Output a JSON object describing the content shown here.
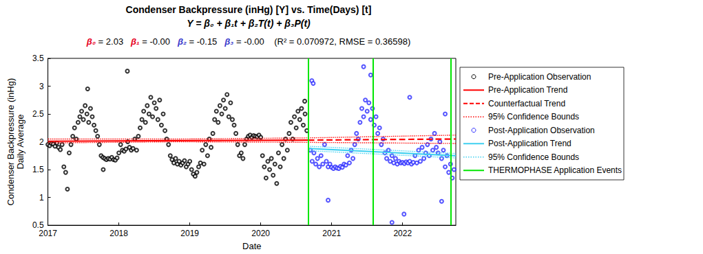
{
  "chart_data": {
    "type": "scatter",
    "title": "Condenser Backpressure (inHg) [Y] vs. Time(Days) [t]",
    "subtitle": "Y = β₀ + β₁t + β₂T(t) + β₃P(t)",
    "annotations": [
      {
        "text": "β₀",
        "color": "#e6001e"
      },
      {
        "text": " = 2.03   "
      },
      {
        "text": "β₁",
        "color": "#e6001e"
      },
      {
        "text": " = -0.00   "
      },
      {
        "text": "β₂",
        "color": "#3a3acc"
      },
      {
        "text": " = -0.15   "
      },
      {
        "text": "β₃",
        "color": "#3a3acc"
      },
      {
        "text": " = -0.00    (R² = 0.070972, RMSE = 0.36598)"
      }
    ],
    "x_label": "Date",
    "y_label": "Condenser Backpressure (inHg)\nDaily Average",
    "xlim": [
      2017,
      2022.75
    ],
    "xticks": [
      2017,
      2018,
      2019,
      2020,
      2021,
      2022
    ],
    "ylim": [
      0.5,
      3.5
    ],
    "yticks": [
      0.5,
      1,
      1.5,
      2,
      2.5,
      3,
      3.5
    ],
    "grid": false,
    "legend": "right",
    "series": [
      {
        "name": "Pre-Application Observation",
        "type": "scatter",
        "marker": "circle",
        "color": "#000000",
        "x": [
          2017,
          2017.025,
          2017.05,
          2017.075,
          2017.1,
          2017.125,
          2017.15,
          2017.175,
          2017.2,
          2017.225,
          2017.25,
          2017.275,
          2017.3,
          2017.325,
          2017.35,
          2017.375,
          2017.4,
          2017.425,
          2017.45,
          2017.475,
          2017.5,
          2017.525,
          2017.55,
          2017.575,
          2017.6,
          2017.625,
          2017.65,
          2017.675,
          2017.7,
          2017.725,
          2017.75,
          2017.775,
          2017.8,
          2017.825,
          2017.85,
          2017.875,
          2017.9,
          2017.925,
          2017.95,
          2017.975,
          2018,
          2018.025,
          2018.05,
          2018.075,
          2018.1,
          2018.125,
          2018.15,
          2018.175,
          2018.2,
          2018.225,
          2018.25,
          2018.275,
          2018.3,
          2018.325,
          2018.35,
          2018.375,
          2018.4,
          2018.425,
          2018.45,
          2018.475,
          2018.5,
          2018.525,
          2018.55,
          2018.575,
          2018.6,
          2018.625,
          2018.65,
          2018.675,
          2018.7,
          2018.725,
          2018.75,
          2018.775,
          2018.8,
          2018.825,
          2018.85,
          2018.875,
          2018.9,
          2018.925,
          2018.95,
          2018.975,
          2019,
          2019.025,
          2019.05,
          2019.075,
          2019.1,
          2019.125,
          2019.15,
          2019.175,
          2019.2,
          2019.225,
          2019.25,
          2019.275,
          2019.3,
          2019.325,
          2019.35,
          2019.375,
          2019.4,
          2019.425,
          2019.45,
          2019.475,
          2019.5,
          2019.525,
          2019.55,
          2019.575,
          2019.6,
          2019.625,
          2019.65,
          2019.675,
          2019.7,
          2019.725,
          2019.75,
          2019.775,
          2019.8,
          2019.825,
          2019.85,
          2019.875,
          2019.9,
          2019.925,
          2019.95,
          2019.975,
          2020,
          2020.025,
          2020.05,
          2020.075,
          2020.1,
          2020.125,
          2020.15,
          2020.175,
          2020.2,
          2020.225,
          2020.25,
          2020.275,
          2020.3,
          2020.325,
          2020.35,
          2020.375,
          2020.4,
          2020.425,
          2020.45,
          2020.475,
          2020.5,
          2020.525,
          2020.55,
          2020.575,
          2020.6,
          2020.625,
          2020.65,
          2017.56,
          2018.12,
          2017.78,
          2020.62
        ],
        "values": [
          1.95,
          1.93,
          1.97,
          1.96,
          1.92,
          1.98,
          1.9,
          1.86,
          1.95,
          1.55,
          1.45,
          1.15,
          1.8,
          1.95,
          2.1,
          2.25,
          2.05,
          2.35,
          2.45,
          2.55,
          2.4,
          2.65,
          2.5,
          2.35,
          2.6,
          2.45,
          2.3,
          2.2,
          2.1,
          1.95,
          1.75,
          1.72,
          1.7,
          1.68,
          1.7,
          1.69,
          1.72,
          1.68,
          1.67,
          1.71,
          1.8,
          1.95,
          1.85,
          1.83,
          1.87,
          2.0,
          1.9,
          1.85,
          1.88,
          2.05,
          1.85,
          2.1,
          2.25,
          2.4,
          2.55,
          2.35,
          2.65,
          2.5,
          2.8,
          2.45,
          2.7,
          2.6,
          2.4,
          2.75,
          2.3,
          2.5,
          2.2,
          2.05,
          1.95,
          1.75,
          1.68,
          1.62,
          1.7,
          1.6,
          1.65,
          1.58,
          1.62,
          1.66,
          1.55,
          1.6,
          1.65,
          1.5,
          1.42,
          1.38,
          1.45,
          1.55,
          1.62,
          1.85,
          1.6,
          1.95,
          1.75,
          2.05,
          1.9,
          2.15,
          2.4,
          2.55,
          2.35,
          2.65,
          2.5,
          2.75,
          2.6,
          2.85,
          2.45,
          2.7,
          2.4,
          2.3,
          2.15,
          1.95,
          1.75,
          1.8,
          1.7,
          1.95,
          2.05,
          2.1,
          2.12,
          2.08,
          2.11,
          2.1,
          2.09,
          2.12,
          2.08,
          1.75,
          1.55,
          1.35,
          1.65,
          1.5,
          1.7,
          1.4,
          1.6,
          1.25,
          1.8,
          1.55,
          1.95,
          1.7,
          2.05,
          1.85,
          2.15,
          2.35,
          2.05,
          2.45,
          2.25,
          2.55,
          2.4,
          2.6,
          2.3,
          2.5,
          2.2,
          2.95,
          3.27,
          1.5,
          2.73
        ]
      },
      {
        "name": "Pre-Application Trend",
        "type": "line",
        "line_style": "solid",
        "color": "#ff0000",
        "x": [
          2017,
          2020.67
        ],
        "values": [
          2.01,
          2.03
        ]
      },
      {
        "name": "Counterfactual Trend",
        "type": "line",
        "line_style": "dashed",
        "color": "#ff0000",
        "x": [
          2020.67,
          2022.75
        ],
        "values": [
          2.03,
          2.05
        ]
      },
      {
        "name": "95% Confidence Bounds",
        "type": "band",
        "line_style": "dotted",
        "color": "#ff0000",
        "x": [
          2017,
          2018.8,
          2020.67,
          2022.75
        ],
        "lower": [
          1.98,
          2.0,
          1.99,
          1.97
        ],
        "upper": [
          2.05,
          2.05,
          2.07,
          2.12
        ]
      },
      {
        "name": "Post-Application Observation",
        "type": "scatter",
        "marker": "circle",
        "color": "#2b2bff",
        "x": [
          2020.7,
          2020.725,
          2020.75,
          2020.775,
          2020.8,
          2020.825,
          2020.85,
          2020.875,
          2020.9,
          2020.925,
          2020.95,
          2020.975,
          2021,
          2021.025,
          2021.05,
          2021.075,
          2021.1,
          2021.125,
          2021.15,
          2021.175,
          2021.2,
          2021.225,
          2021.25,
          2021.275,
          2021.3,
          2021.325,
          2021.35,
          2021.375,
          2021.4,
          2021.425,
          2021.45,
          2021.475,
          2021.5,
          2021.525,
          2021.55,
          2021.575,
          2021.6,
          2021.625,
          2021.65,
          2021.675,
          2021.7,
          2021.725,
          2021.75,
          2021.775,
          2021.8,
          2021.825,
          2021.85,
          2021.875,
          2021.9,
          2021.925,
          2021.95,
          2021.975,
          2022,
          2022.025,
          2022.05,
          2022.075,
          2022.1,
          2022.125,
          2022.15,
          2022.175,
          2022.2,
          2022.225,
          2022.25,
          2022.275,
          2022.3,
          2022.325,
          2022.35,
          2022.375,
          2022.4,
          2022.425,
          2022.45,
          2022.475,
          2022.5,
          2022.525,
          2022.55,
          2022.575,
          2022.6,
          2022.625,
          2022.65,
          2022.675,
          2022.7,
          2022.725,
          2020.72,
          2020.74,
          2020.95,
          2021.45,
          2021.55,
          2021.85,
          2022.02,
          2022.1,
          2022.55,
          2022.6
        ],
        "values": [
          1.85,
          1.65,
          1.8,
          1.6,
          1.7,
          1.55,
          1.75,
          1.6,
          1.95,
          1.65,
          1.55,
          1.6,
          1.54,
          1.52,
          1.55,
          1.53,
          1.52,
          1.56,
          1.54,
          1.6,
          1.58,
          1.75,
          1.62,
          1.85,
          1.7,
          1.95,
          2.15,
          2.05,
          2.35,
          2.6,
          2.45,
          2.75,
          2.55,
          2.7,
          2.4,
          2.6,
          2.3,
          2.45,
          2.15,
          2.25,
          1.95,
          2.05,
          1.8,
          1.7,
          1.85,
          1.65,
          1.75,
          1.62,
          1.7,
          1.6,
          1.65,
          1.62,
          1.63,
          1.61,
          1.64,
          1.62,
          1.65,
          1.6,
          1.63,
          1.75,
          1.62,
          1.85,
          1.65,
          1.9,
          1.7,
          1.8,
          1.95,
          1.75,
          2.05,
          1.85,
          2.15,
          1.9,
          1.8,
          2.0,
          1.7,
          1.85,
          1.55,
          1.75,
          1.45,
          1.6,
          1.35,
          1.5,
          3.1,
          3.05,
          0.95,
          3.35,
          3.2,
          0.55,
          0.7,
          2.8,
          0.93,
          2.5
        ]
      },
      {
        "name": "Post-Application Trend",
        "type": "line",
        "line_style": "solid",
        "color": "#3fd0f0",
        "x": [
          2020.67,
          2022.75
        ],
        "values": [
          1.88,
          1.75
        ]
      },
      {
        "name": "95% Confidence Bounds",
        "type": "band",
        "line_style": "dotted",
        "color": "#3fd0f0",
        "x": [
          2020.67,
          2022.75
        ],
        "lower": [
          1.84,
          1.71
        ],
        "upper": [
          1.92,
          1.79
        ]
      },
      {
        "name": "THERMOPHASE Application Events",
        "type": "vline",
        "line_style": "solid",
        "color": "#00e600",
        "x": [
          2020.67,
          2021.58,
          2022.68
        ]
      }
    ]
  }
}
